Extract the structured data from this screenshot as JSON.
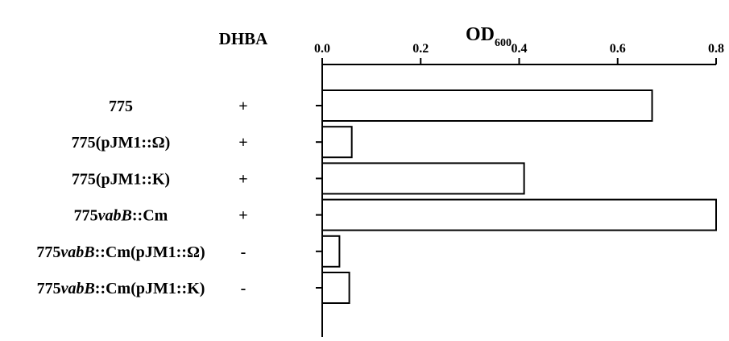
{
  "chart_data": {
    "type": "bar",
    "orientation": "horizontal",
    "title": "OD",
    "title_subscript": "600",
    "x_axis_position": "top",
    "xlim": [
      0.0,
      0.8
    ],
    "xticks": [
      "0.0",
      "0.2",
      "0.4",
      "0.6",
      "0.8"
    ],
    "xtick_values": [
      0.0,
      0.2,
      0.4,
      0.6,
      0.8
    ],
    "column_header": "DHBA",
    "categories": [
      {
        "label_parts": [
          {
            "text": "775",
            "italic": false
          }
        ],
        "dhba": "+",
        "value": 0.67
      },
      {
        "label_parts": [
          {
            "text": "775(pJM1::Ω)",
            "italic": false
          }
        ],
        "dhba": "+",
        "value": 0.06
      },
      {
        "label_parts": [
          {
            "text": "775(pJM1::K)",
            "italic": false
          }
        ],
        "dhba": "+",
        "value": 0.41
      },
      {
        "label_parts": [
          {
            "text": "775",
            "italic": false
          },
          {
            "text": "vabB",
            "italic": true
          },
          {
            "text": "::Cm",
            "italic": false
          }
        ],
        "dhba": "+",
        "value": 0.8
      },
      {
        "label_parts": [
          {
            "text": "775",
            "italic": false
          },
          {
            "text": "vabB",
            "italic": true
          },
          {
            "text": "::Cm(pJM1::Ω)",
            "italic": false
          }
        ],
        "dhba": "-",
        "value": 0.035
      },
      {
        "label_parts": [
          {
            "text": "775",
            "italic": false
          },
          {
            "text": "vabB",
            "italic": true
          },
          {
            "text": "::Cm(pJM1::K)",
            "italic": false
          }
        ],
        "dhba": "-",
        "value": 0.055
      }
    ],
    "grid": false,
    "bar_fill": "#ffffff",
    "bar_stroke": "#000000"
  }
}
